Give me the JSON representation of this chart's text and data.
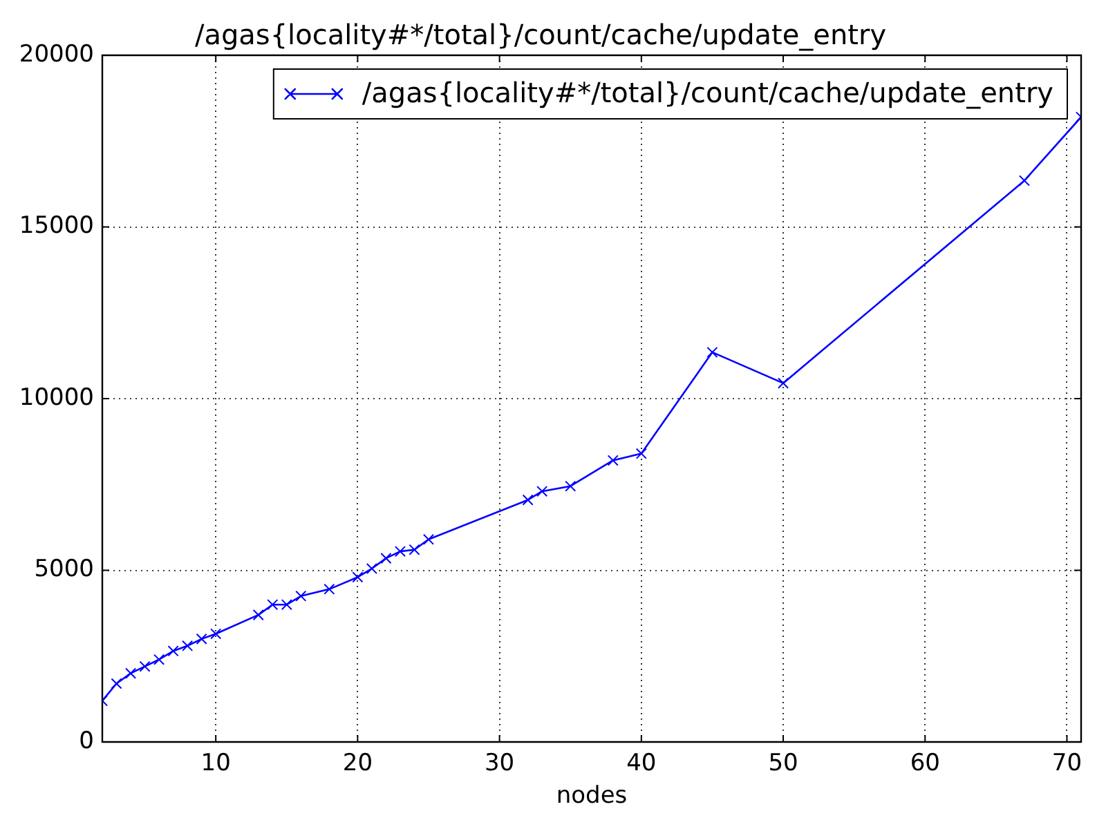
{
  "chart_data": {
    "type": "line",
    "title": "/agas{locality#*/total}/count/cache/update_entry",
    "xlabel": "nodes",
    "x": [
      2,
      3,
      4,
      5,
      6,
      7,
      8,
      9,
      10,
      13,
      14,
      15,
      16,
      18,
      20,
      21,
      22,
      23,
      24,
      25,
      32,
      33,
      35,
      38,
      40,
      45,
      50,
      67,
      71
    ],
    "series": [
      {
        "name": "/agas{locality#*/total}/count/cache/update_entry",
        "color": "#0000ff",
        "values": [
          1200,
          1700,
          2000,
          2200,
          2400,
          2650,
          2800,
          3000,
          3150,
          3700,
          4000,
          4000,
          4250,
          4450,
          4800,
          5050,
          5350,
          5550,
          5600,
          5900,
          7050,
          7300,
          7450,
          8200,
          8400,
          11350,
          10450,
          16350,
          18200
        ]
      }
    ],
    "xlim": [
      2,
      71
    ],
    "xticks": [
      10,
      20,
      30,
      40,
      50,
      60,
      70
    ],
    "ylim": [
      0,
      20000
    ],
    "yticks": [
      0,
      5000,
      10000,
      15000,
      20000
    ],
    "grid": true,
    "legend": "top right",
    "marker": "cross",
    "line_style": "solid"
  }
}
